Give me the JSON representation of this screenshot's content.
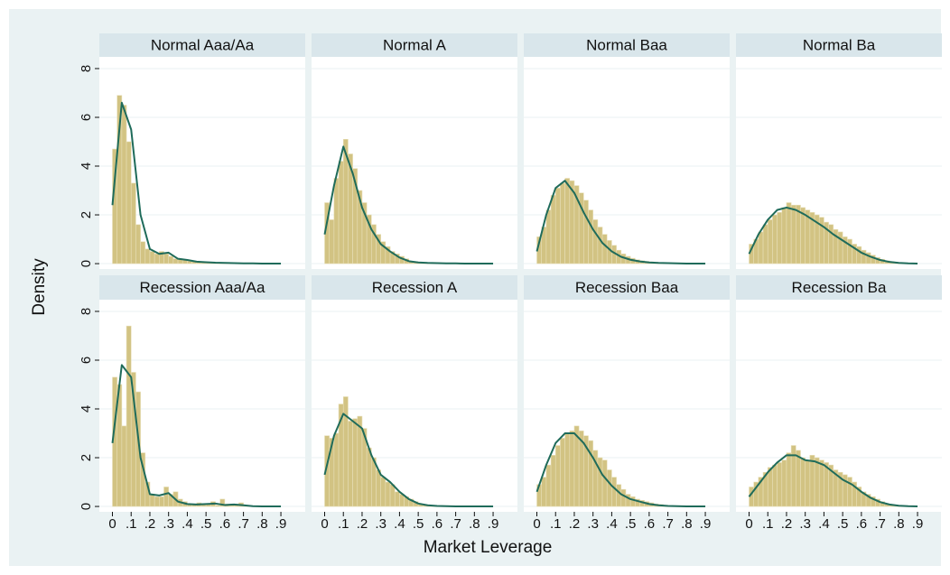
{
  "chart_data": {
    "type": "histogram",
    "y_label": "Density",
    "x_label": "Market Leverage",
    "xlim": [
      -0.07,
      1.03
    ],
    "xticks": [
      0,
      {
        "value": 0.1,
        "label": ".1"
      },
      {
        "value": 0.2,
        "label": ".2"
      },
      {
        "value": 0.3,
        "label": ".3"
      },
      {
        "value": 0.4,
        "label": ".4"
      },
      {
        "value": 0.5,
        "label": ".5"
      },
      {
        "value": 0.6,
        "label": ".6"
      },
      {
        "value": 0.7,
        "label": ".7"
      },
      {
        "value": 0.8,
        "label": ".8"
      },
      {
        "value": 0.9,
        "label": ".9"
      }
    ],
    "ylim": [
      -0.22,
      8.48
    ],
    "yticks": [
      0,
      2,
      4,
      6,
      8
    ],
    "grid": true,
    "bar_color": "#d2c383",
    "curve_color": "#1f6b5a",
    "bins": [
      0,
      0.025,
      0.05,
      0.075,
      0.1,
      0.125,
      0.15,
      0.175,
      0.2,
      0.225,
      0.25,
      0.275,
      0.3,
      0.325,
      0.35,
      0.375,
      0.4,
      0.425,
      0.45,
      0.475,
      0.5,
      0.525,
      0.55,
      0.575,
      0.6,
      0.625,
      0.65,
      0.675,
      0.7,
      0.725,
      0.75,
      0.775,
      0.8,
      0.825,
      0.85,
      0.875,
      0.9
    ],
    "density_x": [
      0,
      0.05,
      0.1,
      0.15,
      0.2,
      0.25,
      0.3,
      0.35,
      0.4,
      0.45,
      0.5,
      0.55,
      0.6,
      0.65,
      0.7,
      0.75,
      0.8,
      0.85,
      0.9
    ],
    "panels": [
      {
        "title": "Normal Aaa/Aa",
        "values": [
          4.7,
          6.9,
          6.5,
          5.0,
          3.3,
          1.6,
          0.9,
          0.6,
          0.5,
          0.4,
          0.5,
          0.4,
          0.3,
          0.2,
          0.2,
          0.15,
          0.1,
          0.1,
          0.08,
          0.06,
          0.05,
          0.05,
          0.04,
          0.03,
          0.03,
          0.02,
          0.02,
          0.01,
          0.01,
          0.01,
          0.01,
          0,
          0,
          0,
          0,
          0
        ],
        "density": [
          2.4,
          6.6,
          5.5,
          2.0,
          0.6,
          0.4,
          0.45,
          0.2,
          0.15,
          0.08,
          0.06,
          0.04,
          0.03,
          0.02,
          0.01,
          0.01,
          0,
          0,
          0
        ]
      },
      {
        "title": "Normal A",
        "values": [
          2.5,
          1.8,
          3.5,
          4.2,
          5.1,
          4.5,
          3.9,
          3.0,
          2.5,
          2.0,
          1.6,
          1.2,
          0.9,
          0.7,
          0.5,
          0.4,
          0.3,
          0.2,
          0.1,
          0.08,
          0.06,
          0.04,
          0.03,
          0.02,
          0.02,
          0.01,
          0.01,
          0.01,
          0,
          0,
          0,
          0,
          0,
          0,
          0,
          0
        ],
        "density": [
          1.2,
          3.2,
          4.8,
          3.7,
          2.3,
          1.4,
          0.8,
          0.5,
          0.25,
          0.1,
          0.05,
          0.03,
          0.02,
          0.01,
          0.01,
          0,
          0,
          0,
          0
        ]
      },
      {
        "title": "Normal Baa",
        "values": [
          1.1,
          1.5,
          2.2,
          2.8,
          3.1,
          3.3,
          3.5,
          3.4,
          3.2,
          2.9,
          2.6,
          2.2,
          1.8,
          1.5,
          1.2,
          0.95,
          0.75,
          0.55,
          0.4,
          0.3,
          0.22,
          0.16,
          0.12,
          0.09,
          0.07,
          0.05,
          0.04,
          0.03,
          0.02,
          0.02,
          0.01,
          0.01,
          0.01,
          0,
          0,
          0
        ],
        "density": [
          0.5,
          2.0,
          3.1,
          3.4,
          2.9,
          2.1,
          1.4,
          0.85,
          0.5,
          0.28,
          0.16,
          0.09,
          0.05,
          0.03,
          0.02,
          0.01,
          0,
          0,
          0
        ]
      },
      {
        "title": "Normal Ba",
        "values": [
          0.8,
          1.0,
          1.3,
          1.6,
          1.8,
          2.0,
          2.1,
          2.3,
          2.5,
          2.4,
          2.4,
          2.3,
          2.2,
          2.1,
          2.0,
          1.9,
          1.7,
          1.6,
          1.4,
          1.3,
          1.1,
          1.0,
          0.8,
          0.7,
          0.55,
          0.45,
          0.35,
          0.25,
          0.18,
          0.12,
          0.08,
          0.05,
          0.03,
          0.02,
          0.01,
          0
        ],
        "density": [
          0.4,
          1.2,
          1.8,
          2.2,
          2.3,
          2.2,
          2.0,
          1.75,
          1.5,
          1.2,
          0.95,
          0.7,
          0.45,
          0.28,
          0.15,
          0.07,
          0.03,
          0.01,
          0
        ]
      },
      {
        "title": "Recession Aaa/Aa",
        "values": [
          5.3,
          5.0,
          3.3,
          7.4,
          5.5,
          4.7,
          2.2,
          1.0,
          0.5,
          0.4,
          0.4,
          0.8,
          0.5,
          0.6,
          0.3,
          0.2,
          0.1,
          0.1,
          0.15,
          0.1,
          0.1,
          0.2,
          0.05,
          0.3,
          0.1,
          0.1,
          0.1,
          0.15,
          0.05,
          0,
          0,
          0,
          0,
          0,
          0,
          0
        ],
        "density": [
          2.6,
          5.8,
          5.3,
          2.0,
          0.5,
          0.45,
          0.55,
          0.2,
          0.1,
          0.08,
          0.1,
          0.12,
          0.06,
          0.08,
          0.05,
          0.01,
          0,
          0,
          0
        ]
      },
      {
        "title": "Recession A",
        "values": [
          2.9,
          2.8,
          3.0,
          4.2,
          4.5,
          3.5,
          3.6,
          3.7,
          3.2,
          2.4,
          2.0,
          1.5,
          1.2,
          1.0,
          0.9,
          0.6,
          0.5,
          0.4,
          0.3,
          0.2,
          0.1,
          0.08,
          0.05,
          0.03,
          0.02,
          0.01,
          0,
          0,
          0,
          0,
          0,
          0,
          0,
          0,
          0,
          0
        ],
        "density": [
          1.3,
          2.9,
          3.8,
          3.5,
          3.2,
          2.1,
          1.3,
          1.0,
          0.6,
          0.3,
          0.12,
          0.05,
          0.02,
          0.01,
          0,
          0,
          0,
          0,
          0
        ]
      },
      {
        "title": "Recession Baa",
        "values": [
          0.9,
          1.2,
          1.7,
          2.1,
          2.5,
          2.8,
          3.0,
          3.1,
          3.3,
          3.1,
          2.9,
          2.7,
          2.3,
          2.0,
          1.9,
          1.5,
          1.2,
          0.9,
          0.7,
          0.5,
          0.4,
          0.3,
          0.25,
          0.2,
          0.15,
          0.1,
          0.08,
          0.05,
          0.03,
          0.02,
          0.01,
          0.01,
          0,
          0,
          0,
          0
        ],
        "density": [
          0.6,
          1.7,
          2.6,
          3.0,
          3.0,
          2.6,
          2.0,
          1.3,
          0.85,
          0.5,
          0.3,
          0.2,
          0.1,
          0.05,
          0.02,
          0.01,
          0,
          0,
          0
        ]
      },
      {
        "title": "Recession Ba",
        "values": [
          0.8,
          1.0,
          1.2,
          1.4,
          1.6,
          1.7,
          1.8,
          1.9,
          2.2,
          2.5,
          2.3,
          2.0,
          1.9,
          2.1,
          2.0,
          1.9,
          1.8,
          1.7,
          1.5,
          1.4,
          1.3,
          1.2,
          1.0,
          0.8,
          0.6,
          0.5,
          0.4,
          0.3,
          0.2,
          0.1,
          0.08,
          0.05,
          0.03,
          0.02,
          0.01,
          0
        ],
        "density": [
          0.4,
          0.9,
          1.4,
          1.8,
          2.1,
          2.1,
          1.9,
          1.85,
          1.7,
          1.4,
          1.1,
          0.9,
          0.6,
          0.35,
          0.18,
          0.08,
          0.03,
          0.01,
          0
        ]
      }
    ]
  }
}
